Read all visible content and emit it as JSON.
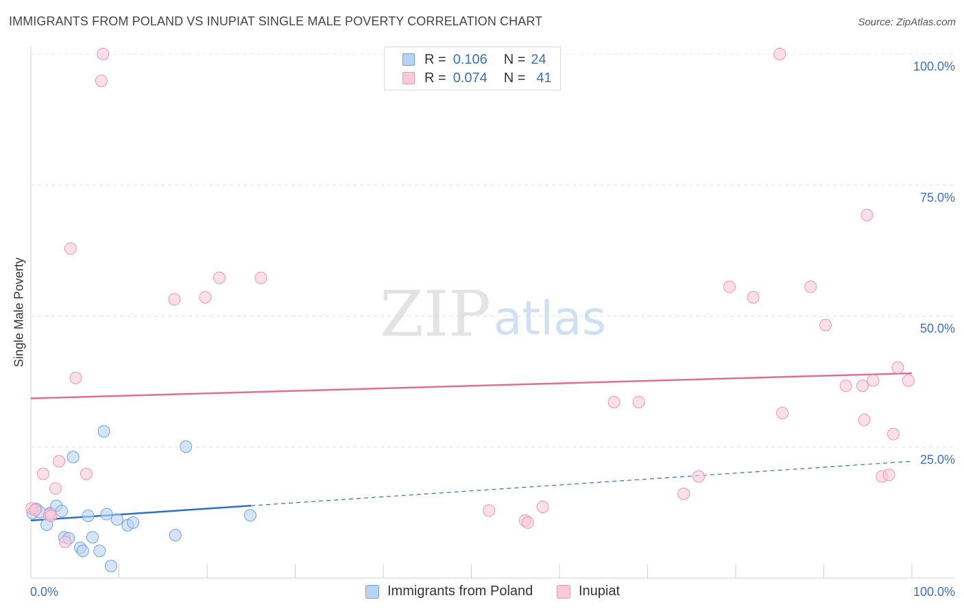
{
  "title": "IMMIGRANTS FROM POLAND VS INUPIAT SINGLE MALE POVERTY CORRELATION CHART",
  "source": "Source: ZipAtlas.com",
  "legend": {
    "r_label": "R =",
    "n_label": "N =",
    "rows": [
      {
        "r": "0.106",
        "n": "24",
        "fill": "#b8d4f5",
        "stroke": "#6f9fe0"
      },
      {
        "r": "0.074",
        "n": "41",
        "fill": "#fbc9d8",
        "stroke": "#ec94b1"
      }
    ]
  },
  "watermark": {
    "zip": "ZIP",
    "atlas": "atlas"
  },
  "chart_data": {
    "type": "scatter",
    "title": "IMMIGRANTS FROM POLAND VS INUPIAT SINGLE MALE POVERTY CORRELATION CHART",
    "xlabel": "",
    "ylabel": "Single Male Poverty",
    "xlim": [
      0,
      100
    ],
    "ylim": [
      0,
      100
    ],
    "x_tick_labels": [
      "0.0%",
      "100.0%"
    ],
    "y_tick_labels": [
      "25.0%",
      "50.0%",
      "75.0%",
      "100.0%"
    ],
    "y_tick_values": [
      25,
      50,
      75,
      100
    ],
    "series": [
      {
        "name": "Immigrants from Poland",
        "color": "#6f9fe0",
        "fill": "#b8d4f5",
        "line_color": "#2b6fc8",
        "trend": {
          "x0": 0,
          "y0": 11.0,
          "x1": 100,
          "y1": 22.3,
          "solid_until": 25
        },
        "points": [
          [
            0.2,
            12.4
          ],
          [
            0.6,
            13.2
          ],
          [
            1.0,
            12.6
          ],
          [
            1.8,
            10.2
          ],
          [
            2.2,
            12.4
          ],
          [
            2.9,
            13.8
          ],
          [
            3.5,
            12.8
          ],
          [
            3.8,
            7.8
          ],
          [
            4.3,
            7.6
          ],
          [
            4.8,
            23.1
          ],
          [
            5.6,
            5.8
          ],
          [
            5.9,
            5.2
          ],
          [
            6.5,
            11.9
          ],
          [
            7.0,
            7.8
          ],
          [
            7.8,
            5.2
          ],
          [
            8.3,
            28.0
          ],
          [
            8.6,
            12.2
          ],
          [
            9.1,
            2.3
          ],
          [
            9.8,
            11.2
          ],
          [
            11.0,
            10.1
          ],
          [
            11.6,
            10.6
          ],
          [
            16.4,
            8.2
          ],
          [
            17.6,
            25.1
          ],
          [
            24.9,
            12.0
          ]
        ]
      },
      {
        "name": "Inupiat",
        "color": "#ec94b1",
        "fill": "#fbc9d8",
        "line_color": "#e06d95",
        "trend": {
          "x0": 0,
          "y0": 34.3,
          "x1": 100,
          "y1": 39.1,
          "solid_until": 100
        },
        "points": [
          [
            0.1,
            13.3
          ],
          [
            0.5,
            13.0
          ],
          [
            1.4,
            19.9
          ],
          [
            2.1,
            12.1
          ],
          [
            2.3,
            11.9
          ],
          [
            2.8,
            17.1
          ],
          [
            3.2,
            22.3
          ],
          [
            3.9,
            6.9
          ],
          [
            4.5,
            62.9
          ],
          [
            5.1,
            38.2
          ],
          [
            6.3,
            19.9
          ],
          [
            8.0,
            94.9
          ],
          [
            8.2,
            100.0
          ],
          [
            16.3,
            53.2
          ],
          [
            19.8,
            53.6
          ],
          [
            21.4,
            57.3
          ],
          [
            26.1,
            57.3
          ],
          [
            52.0,
            12.9
          ],
          [
            56.1,
            11.0
          ],
          [
            56.4,
            10.6
          ],
          [
            58.1,
            13.6
          ],
          [
            66.2,
            33.6
          ],
          [
            69.0,
            33.6
          ],
          [
            74.1,
            16.1
          ],
          [
            75.8,
            19.4
          ],
          [
            79.3,
            55.6
          ],
          [
            82.0,
            53.6
          ],
          [
            85.0,
            100.0
          ],
          [
            85.3,
            31.5
          ],
          [
            88.5,
            55.6
          ],
          [
            90.2,
            48.3
          ],
          [
            92.5,
            36.7
          ],
          [
            94.4,
            36.7
          ],
          [
            94.6,
            30.2
          ],
          [
            94.9,
            69.3
          ],
          [
            95.6,
            37.7
          ],
          [
            96.6,
            19.4
          ],
          [
            97.4,
            19.7
          ],
          [
            97.9,
            27.5
          ],
          [
            98.4,
            40.2
          ],
          [
            99.6,
            37.7
          ]
        ]
      }
    ]
  },
  "bottom_legend": [
    {
      "label": "Immigrants from Poland",
      "fill": "#b8d4f5",
      "stroke": "#6f9fe0"
    },
    {
      "label": "Inupiat",
      "fill": "#fbc9d8",
      "stroke": "#ec94b1"
    }
  ]
}
